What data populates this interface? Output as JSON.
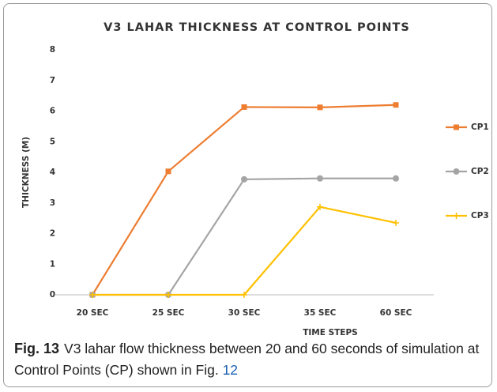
{
  "chart_data": {
    "type": "line",
    "title": "V3 LAHAR THICKNESS AT CONTROL POINTS",
    "xlabel": "TIME STEPS",
    "ylabel": "THICKNESS (M)",
    "categories": [
      "20 SEC",
      "25 SEC",
      "30 SEC",
      "35 SEC",
      "60 SEC"
    ],
    "series": [
      {
        "name": "CP1",
        "color": "#ED7D31",
        "marker": "square",
        "values": [
          0,
          4.03,
          6.13,
          6.12,
          6.2
        ]
      },
      {
        "name": "CP2",
        "color": "#A5A5A5",
        "marker": "circle",
        "values": [
          0,
          0,
          3.77,
          3.8,
          3.8
        ]
      },
      {
        "name": "CP3",
        "color": "#FFC000",
        "marker": "plus",
        "values": [
          0,
          0,
          0,
          2.87,
          2.35
        ]
      }
    ],
    "ylim": [
      0,
      8
    ],
    "yticks": [
      0,
      1,
      2,
      3,
      4,
      5,
      6,
      7,
      8
    ],
    "grid": false,
    "legend": "right"
  },
  "caption": {
    "label": "Fig. 13",
    "text": "V3 lahar flow thickness between 20 and 60 seconds of simulation at Control Points (CP) shown in Fig. ",
    "ref": "12"
  }
}
